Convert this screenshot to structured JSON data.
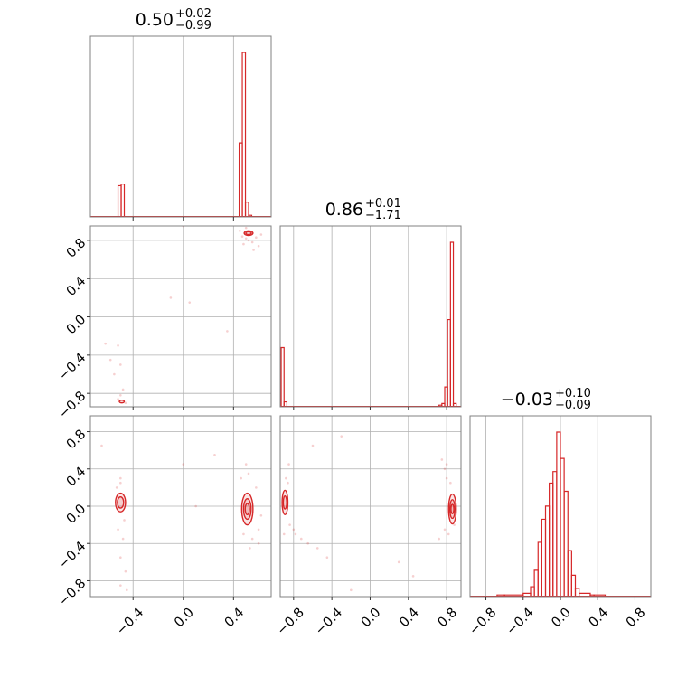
{
  "colors": {
    "series": "#d62728",
    "grid": "#b0b0b0",
    "frame": "#808080"
  },
  "chart_data": {
    "type": "corner",
    "parameters": 3,
    "titles": [
      {
        "center": "0.50",
        "plus": "+0.02",
        "minus": "−0.99"
      },
      {
        "center": "0.86",
        "plus": "+0.01",
        "minus": "−1.71"
      },
      {
        "center": "−0.03",
        "plus": "+0.10",
        "minus": "−0.09"
      }
    ],
    "ranges": [
      [
        -0.74,
        0.7
      ],
      [
        -0.94,
        0.95
      ],
      [
        -0.97,
        0.97
      ]
    ],
    "ticks": [
      {
        "values": [
          -0.4,
          0.0,
          0.4
        ],
        "labels": [
          "−0.4",
          "0.0",
          "0.4"
        ]
      },
      {
        "values": [
          -0.8,
          -0.4,
          0.0,
          0.4,
          0.8
        ],
        "labels": [
          "−0.8",
          "−0.4",
          "0.0",
          "0.4",
          "0.8"
        ]
      },
      {
        "values": [
          -0.8,
          -0.4,
          0.0,
          0.4,
          0.8
        ],
        "labels": [
          "−0.8",
          "−0.4",
          "0.0",
          "0.4",
          "0.8"
        ]
      }
    ],
    "histograms": [
      {
        "bins": [
          [
            -0.52,
            -0.495,
            0.19
          ],
          [
            -0.495,
            -0.47,
            0.2
          ],
          [
            0.445,
            0.47,
            0.45
          ],
          [
            0.47,
            0.495,
            1.0
          ],
          [
            0.495,
            0.52,
            0.09
          ],
          [
            0.52,
            0.545,
            0.01
          ]
        ]
      },
      {
        "bins": [
          [
            -0.93,
            -0.9,
            0.36
          ],
          [
            -0.9,
            -0.87,
            0.03
          ],
          [
            0.72,
            0.75,
            0.01
          ],
          [
            0.75,
            0.78,
            0.02
          ],
          [
            0.78,
            0.81,
            0.12
          ],
          [
            0.81,
            0.84,
            0.53
          ],
          [
            0.84,
            0.87,
            1.0
          ],
          [
            0.87,
            0.9,
            0.02
          ]
        ]
      },
      {
        "bins": [
          [
            -0.68,
            -0.6,
            0.01
          ],
          [
            -0.6,
            -0.4,
            0.01
          ],
          [
            -0.4,
            -0.32,
            0.02
          ],
          [
            -0.32,
            -0.28,
            0.06
          ],
          [
            -0.28,
            -0.24,
            0.16
          ],
          [
            -0.24,
            -0.2,
            0.33
          ],
          [
            -0.2,
            -0.16,
            0.47
          ],
          [
            -0.16,
            -0.12,
            0.55
          ],
          [
            -0.12,
            -0.08,
            0.69
          ],
          [
            -0.08,
            -0.04,
            0.76
          ],
          [
            -0.04,
            0.0,
            1.0
          ],
          [
            0.0,
            0.04,
            0.84
          ],
          [
            0.04,
            0.08,
            0.64
          ],
          [
            0.08,
            0.12,
            0.28
          ],
          [
            0.12,
            0.16,
            0.13
          ],
          [
            0.16,
            0.2,
            0.05
          ],
          [
            0.2,
            0.32,
            0.02
          ],
          [
            0.32,
            0.36,
            0.01
          ],
          [
            0.36,
            0.48,
            0.01
          ]
        ]
      }
    ],
    "pairs": [
      {
        "x_param": 0,
        "y_param": 1,
        "contours": [
          {
            "cx": 0.52,
            "cy": 0.875,
            "rx": 0.035,
            "ry": 0.025
          },
          {
            "cx": 0.52,
            "cy": 0.875,
            "rx": 0.022,
            "ry": 0.015
          },
          {
            "cx": -0.49,
            "cy": -0.885,
            "rx": 0.02,
            "ry": 0.014
          }
        ],
        "points": [
          [
            0.5,
            0.82
          ],
          [
            0.52,
            0.8
          ],
          [
            0.55,
            0.78
          ],
          [
            0.48,
            0.76
          ],
          [
            0.58,
            0.83
          ],
          [
            0.6,
            0.74
          ],
          [
            0.47,
            0.84
          ],
          [
            0.62,
            0.86
          ],
          [
            0.56,
            0.7
          ],
          [
            0.5,
            0.93
          ],
          [
            0.45,
            0.9
          ],
          [
            -0.5,
            -0.82
          ],
          [
            -0.48,
            -0.76
          ],
          [
            -0.52,
            -0.86
          ],
          [
            -0.46,
            -0.9
          ],
          [
            -0.5,
            -0.5
          ],
          [
            -0.58,
            -0.45
          ],
          [
            -0.62,
            -0.28
          ],
          [
            -0.52,
            -0.3
          ],
          [
            -0.1,
            0.2
          ],
          [
            0.05,
            0.15
          ],
          [
            0.35,
            -0.15
          ],
          [
            0.0,
            0.95
          ],
          [
            -0.55,
            -0.6
          ]
        ]
      },
      {
        "x_param": 0,
        "y_param": 2,
        "contours": [
          {
            "cx": -0.5,
            "cy": 0.04,
            "rx": 0.04,
            "ry": 0.1
          },
          {
            "cx": -0.5,
            "cy": 0.04,
            "rx": 0.025,
            "ry": 0.06
          },
          {
            "cx": 0.51,
            "cy": -0.03,
            "rx": 0.045,
            "ry": 0.17
          },
          {
            "cx": 0.51,
            "cy": -0.03,
            "rx": 0.03,
            "ry": 0.11
          },
          {
            "cx": 0.51,
            "cy": -0.03,
            "rx": 0.017,
            "ry": 0.06
          }
        ],
        "points": [
          [
            -0.5,
            0.25
          ],
          [
            -0.5,
            0.3
          ],
          [
            -0.52,
            -0.25
          ],
          [
            -0.48,
            -0.35
          ],
          [
            -0.5,
            -0.55
          ],
          [
            -0.46,
            -0.7
          ],
          [
            -0.53,
            0.2
          ],
          [
            -0.47,
            -0.15
          ],
          [
            -0.5,
            -0.85
          ],
          [
            -0.45,
            -0.9
          ],
          [
            0.5,
            0.45
          ],
          [
            0.52,
            0.35
          ],
          [
            0.48,
            -0.3
          ],
          [
            0.55,
            -0.35
          ],
          [
            0.6,
            -0.25
          ],
          [
            0.58,
            0.2
          ],
          [
            0.6,
            -0.4
          ],
          [
            0.46,
            0.3
          ],
          [
            0.53,
            -0.45
          ],
          [
            0.62,
            -0.1
          ],
          [
            0.0,
            0.45
          ],
          [
            -0.65,
            0.65
          ],
          [
            0.25,
            0.55
          ],
          [
            0.1,
            0.0
          ]
        ]
      },
      {
        "x_param": 1,
        "y_param": 2,
        "contours": [
          {
            "cx": -0.89,
            "cy": 0.04,
            "rx": 0.03,
            "ry": 0.13
          },
          {
            "cx": -0.89,
            "cy": 0.04,
            "rx": 0.018,
            "ry": 0.07
          },
          {
            "cx": 0.86,
            "cy": -0.03,
            "rx": 0.04,
            "ry": 0.16
          },
          {
            "cx": 0.86,
            "cy": -0.03,
            "rx": 0.027,
            "ry": 0.1
          },
          {
            "cx": 0.86,
            "cy": -0.03,
            "rx": 0.015,
            "ry": 0.05
          }
        ],
        "points": [
          [
            -0.88,
            0.3
          ],
          [
            -0.86,
            0.25
          ],
          [
            -0.84,
            -0.2
          ],
          [
            -0.8,
            -0.25
          ],
          [
            -0.78,
            -0.3
          ],
          [
            -0.72,
            -0.35
          ],
          [
            -0.65,
            -0.4
          ],
          [
            -0.55,
            -0.45
          ],
          [
            -0.45,
            -0.55
          ],
          [
            -0.9,
            -0.3
          ],
          [
            0.78,
            0.4
          ],
          [
            0.75,
            0.5
          ],
          [
            0.8,
            0.3
          ],
          [
            0.82,
            -0.3
          ],
          [
            0.78,
            -0.25
          ],
          [
            0.72,
            -0.35
          ],
          [
            0.84,
            0.25
          ],
          [
            0.88,
            -0.2
          ],
          [
            0.8,
            0.45
          ],
          [
            -0.6,
            0.65
          ],
          [
            -0.3,
            0.75
          ],
          [
            0.3,
            -0.6
          ],
          [
            -0.2,
            -0.9
          ],
          [
            0.45,
            -0.75
          ],
          [
            -0.85,
            0.45
          ]
        ]
      }
    ],
    "grid": true
  }
}
